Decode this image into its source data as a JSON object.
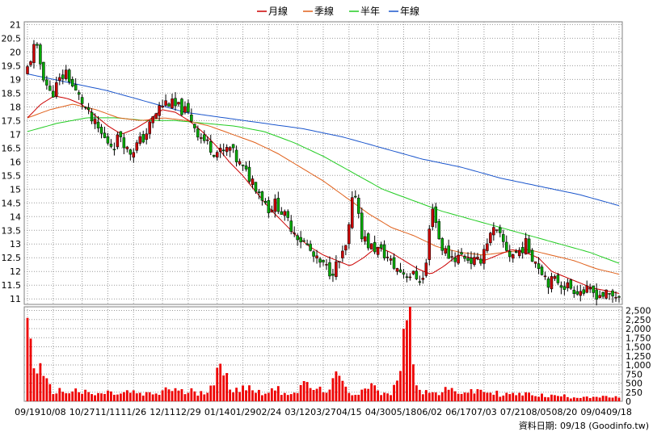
{
  "chart_data": {
    "type": "candlestick",
    "legend": [
      {
        "name": "月線",
        "color": "#cc0000"
      },
      {
        "name": "季線",
        "color": "#e0601a"
      },
      {
        "name": "半年",
        "color": "#22cc22"
      },
      {
        "name": "年線",
        "color": "#1a55cc"
      }
    ],
    "legend_position": "top-center",
    "price_axis": {
      "ylim": [
        10.8,
        21.1
      ],
      "ticks": [
        "11",
        "11.5",
        "12",
        "12.5",
        "13",
        "13.5",
        "14",
        "14.5",
        "15",
        "15.5",
        "16",
        "16.5",
        "17",
        "17.5",
        "18",
        "18.5",
        "19",
        "19.5",
        "20",
        "20.5",
        "21"
      ]
    },
    "volume_axis": {
      "ylim": [
        0,
        2600
      ],
      "ticks": [
        "0",
        "250",
        "500",
        "750",
        "1,000",
        "1,250",
        "1,500",
        "1,750",
        "2,000",
        "2,250",
        "2,500"
      ]
    },
    "x_labels": [
      "09/19",
      "10/08",
      "10/27",
      "11/11",
      "11/26",
      "12/11",
      "12/29",
      "01/14",
      "01/29",
      "02/24",
      "03/12",
      "03/27",
      "04/15",
      "04/30",
      "05/18",
      "06/02",
      "06/17",
      "07/03",
      "07/21",
      "08/05",
      "08/20",
      "09/04",
      "09/18"
    ],
    "grid": true,
    "close_anchors": [
      19.4,
      20.3,
      19.2,
      18.4,
      18.9,
      19.3,
      18.6,
      18.2,
      17.6,
      17.2,
      16.8,
      16.6,
      17.0,
      16.3,
      16.6,
      16.9,
      17.5,
      18.0,
      18.2,
      18.0,
      17.9,
      17.6,
      17.0,
      16.7,
      16.4,
      16.3,
      16.5,
      16.0,
      15.6,
      15.3,
      14.8,
      14.3,
      14.5,
      14.0,
      13.6,
      13.2,
      12.9,
      12.4,
      12.2,
      12.0,
      12.3,
      12.9,
      15.1,
      13.3,
      12.9,
      12.8,
      12.6,
      12.2,
      12.0,
      11.9,
      11.8,
      11.7,
      14.5,
      13.0,
      12.6,
      12.5,
      12.6,
      12.4,
      12.3,
      13.1,
      13.5,
      13.1,
      12.6,
      12.7,
      13.0,
      12.5,
      12.1,
      11.6,
      11.7,
      11.5,
      11.4,
      11.3,
      11.25,
      11.2,
      11.15,
      11.1,
      11.15
    ],
    "ma_month": [
      17.6,
      18.1,
      18.4,
      18.3,
      18.1,
      17.7,
      17.3,
      17.0,
      17.2,
      17.5,
      17.9,
      17.8,
      17.5,
      17.1,
      16.6,
      16.0,
      15.5,
      14.9,
      14.3,
      13.8,
      13.3,
      12.9,
      12.6,
      12.4,
      12.2,
      12.5,
      12.9,
      12.7,
      12.4,
      12.1,
      11.9,
      12.2,
      12.6,
      12.5,
      12.4,
      12.6,
      12.8,
      12.7,
      12.5,
      12.0,
      11.8,
      11.6,
      11.4,
      11.3,
      11.2
    ],
    "ma_quarter": [
      17.6,
      17.9,
      18.1,
      17.9,
      17.6,
      17.5,
      17.6,
      17.5,
      17.3,
      17.0,
      16.7,
      16.3,
      15.8,
      15.3,
      14.7,
      14.1,
      13.6,
      13.3,
      12.9,
      12.7,
      12.6,
      12.7,
      12.8,
      12.6,
      12.4,
      12.1,
      11.9
    ],
    "ma_halfyear": [
      17.1,
      17.4,
      17.6,
      17.6,
      17.5,
      17.5,
      17.4,
      17.3,
      17.1,
      16.7,
      16.2,
      15.6,
      15.0,
      14.6,
      14.2,
      13.9,
      13.6,
      13.3,
      13.0,
      12.7,
      12.3
    ],
    "ma_year": [
      19.2,
      18.9,
      18.6,
      18.2,
      17.8,
      17.6,
      17.4,
      17.2,
      16.9,
      16.5,
      16.1,
      15.8,
      15.4,
      15.1,
      14.8,
      14.4
    ],
    "volume_anchors": [
      2150,
      1100,
      600,
      320,
      280,
      260,
      300,
      250,
      200,
      180,
      240,
      220,
      200,
      260,
      220,
      180,
      200,
      220,
      380,
      300,
      240,
      280,
      250,
      320,
      600,
      880,
      400,
      360,
      420,
      300,
      260,
      280,
      320,
      260,
      240,
      320,
      500,
      280,
      300,
      420,
      680,
      260,
      220,
      300,
      560,
      240,
      180,
      220,
      1500,
      2600,
      520,
      260,
      220,
      240,
      300,
      280,
      260,
      240,
      300,
      260,
      220,
      200,
      180,
      200,
      180,
      220,
      160,
      140,
      150,
      140,
      120,
      130,
      140,
      120,
      110,
      120,
      100
    ]
  },
  "source_note": "資料日期: 09/18  (Goodinfo.tw)"
}
